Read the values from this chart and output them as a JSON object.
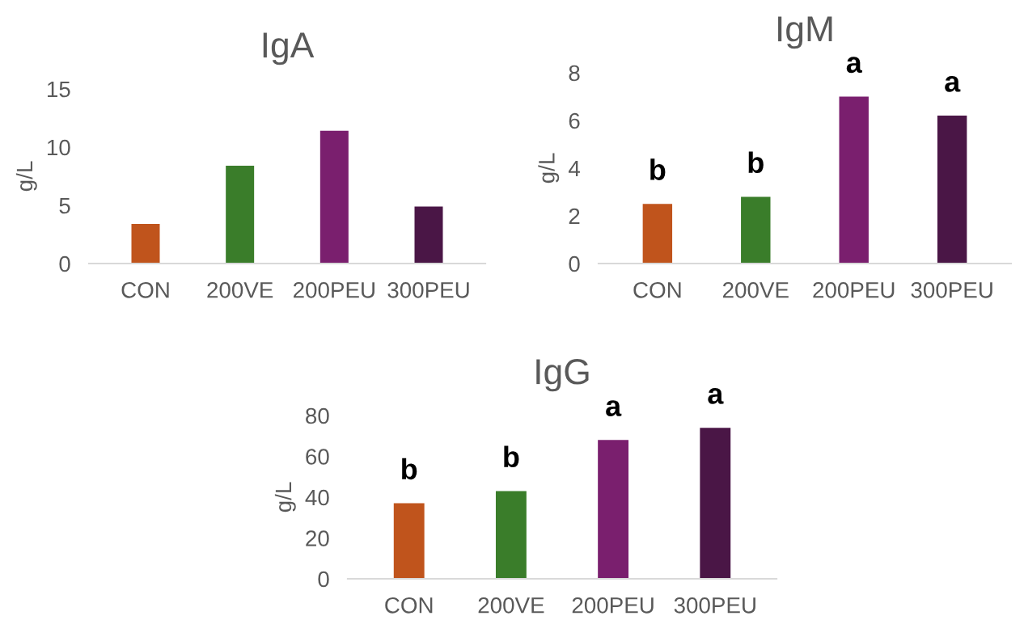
{
  "chart_data": [
    {
      "type": "bar",
      "title": "IgA",
      "ylabel": "g/L",
      "categories": [
        "CON",
        "200VE",
        "200PEU",
        "300PEU"
      ],
      "values": [
        3.4,
        8.4,
        11.4,
        4.9
      ],
      "colors": [
        "#c0541c",
        "#3a7d2a",
        "#7a1f6e",
        "#4a1646"
      ],
      "ylim": [
        0,
        15
      ],
      "yticks": [
        0,
        5,
        10,
        15
      ],
      "grid": false
    },
    {
      "type": "bar",
      "title": "IgM",
      "ylabel": "g/L",
      "categories": [
        "CON",
        "200VE",
        "200PEU",
        "300PEU"
      ],
      "values": [
        2.5,
        2.8,
        7.0,
        6.2
      ],
      "colors": [
        "#c0541c",
        "#3a7d2a",
        "#7a1f6e",
        "#4a1646"
      ],
      "ylim": [
        0,
        8
      ],
      "yticks": [
        0,
        2,
        4,
        6,
        8
      ],
      "grid": false,
      "annotations": [
        {
          "text": "b",
          "x": "CON",
          "y": 2.5
        },
        {
          "text": "b",
          "x": "200VE",
          "y": 2.8
        },
        {
          "text": "a",
          "x": "200PEU",
          "y": 7.0
        },
        {
          "text": "a",
          "x": "300PEU",
          "y": 6.2
        }
      ]
    },
    {
      "type": "bar",
      "title": "IgG",
      "ylabel": "g/L",
      "categories": [
        "CON",
        "200VE",
        "200PEU",
        "300PEU"
      ],
      "values": [
        37,
        43,
        68,
        74
      ],
      "colors": [
        "#c0541c",
        "#3a7d2a",
        "#7a1f6e",
        "#4a1646"
      ],
      "ylim": [
        0,
        80
      ],
      "yticks": [
        0,
        20,
        40,
        60,
        80
      ],
      "grid": false,
      "annotations": [
        {
          "text": "b",
          "x": "CON",
          "y": 37
        },
        {
          "text": "b",
          "x": "200VE",
          "y": 43
        },
        {
          "text": "a",
          "x": "200PEU",
          "y": 68
        },
        {
          "text": "a",
          "x": "300PEU",
          "y": 74
        }
      ]
    }
  ]
}
